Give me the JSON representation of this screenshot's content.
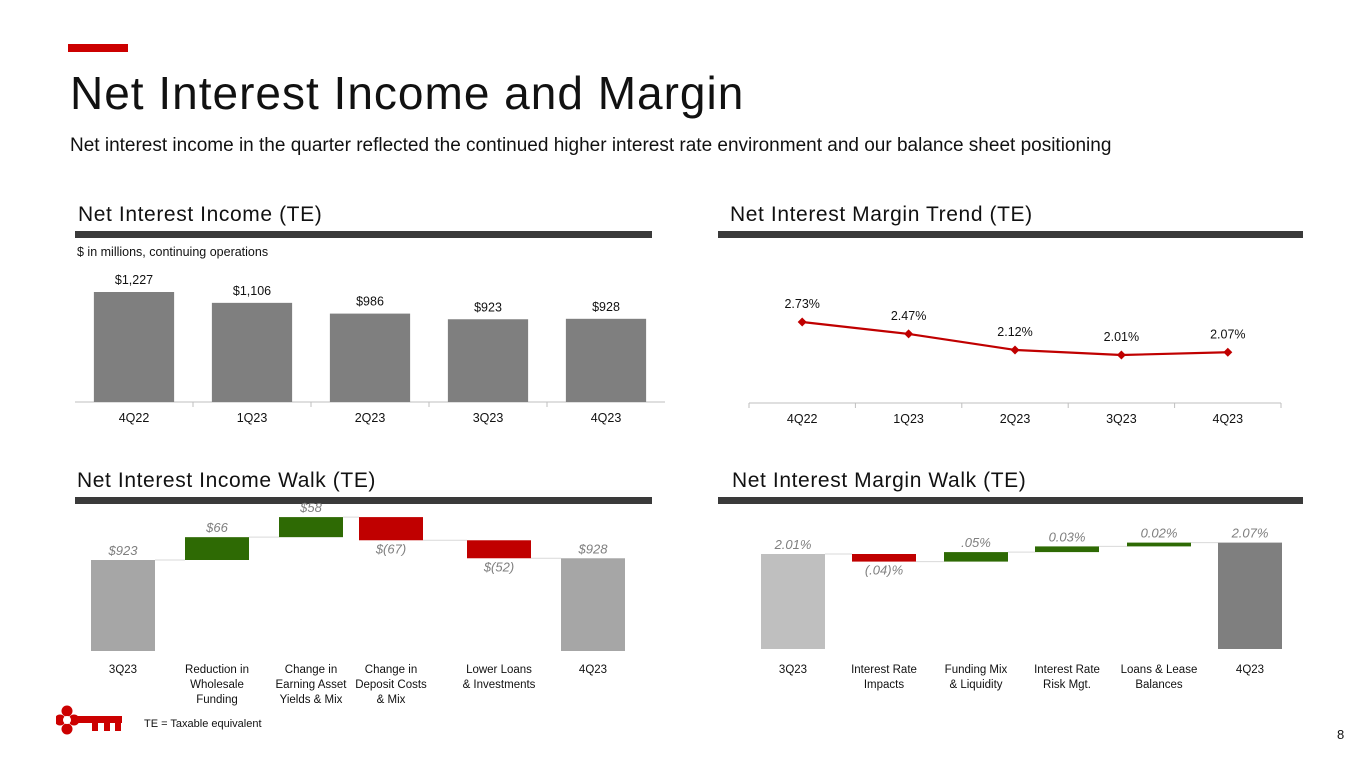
{
  "header": {
    "title": "Net Interest Income and Margin",
    "subtitle": "Net interest income in the quarter reflected the continued higher interest rate environment and our balance sheet positioning"
  },
  "sections": {
    "nii_title": "Net Interest Income (TE)",
    "nim_title": "Net Interest Margin Trend (TE)",
    "nii_walk_title": "Net Interest Income Walk (TE)",
    "nim_walk_title": "Net Interest Margin Walk (TE)"
  },
  "note": "$ in millions, continuing operations",
  "footnote": "TE = Taxable equivalent",
  "page_number": "8",
  "colors": {
    "bar_gray": "#7f7f7f",
    "line_red": "#c00000",
    "up_green": "#2e6a04",
    "down_red": "#c00000",
    "walk_light": "#a6a6a6",
    "walk_light2": "#bfbfbf",
    "logo_red": "#cc0000"
  },
  "chart_data": [
    {
      "id": "nii",
      "type": "bar",
      "title": "Net Interest Income (TE)",
      "categories": [
        "4Q22",
        "1Q23",
        "2Q23",
        "3Q23",
        "4Q23"
      ],
      "values": [
        1227,
        1106,
        986,
        923,
        928
      ],
      "labels": [
        "$1,227",
        "$1,106",
        "$986",
        "$923",
        "$928"
      ],
      "ylim": [
        0,
        1227
      ]
    },
    {
      "id": "nim",
      "type": "line",
      "title": "Net Interest Margin Trend (TE)",
      "categories": [
        "4Q22",
        "1Q23",
        "2Q23",
        "3Q23",
        "4Q23"
      ],
      "values": [
        2.73,
        2.47,
        2.12,
        2.01,
        2.07
      ],
      "labels": [
        "2.73%",
        "2.47%",
        "2.12%",
        "2.01%",
        "2.07%"
      ]
    },
    {
      "id": "nii_walk",
      "type": "waterfall",
      "title": "Net Interest Income Walk (TE)",
      "steps": [
        {
          "category": "3Q23",
          "value": 923,
          "kind": "total",
          "label": "$923"
        },
        {
          "category": "Reduction in Wholesale Funding",
          "value": 66,
          "kind": "delta",
          "label": "$66"
        },
        {
          "category": "Change in Earning Asset Yields & Mix",
          "value": 58,
          "kind": "delta",
          "label": "$58"
        },
        {
          "category": "Change in Deposit Costs & Mix",
          "value": -67,
          "kind": "delta",
          "label": "$(67)"
        },
        {
          "category": "Lower Loans & Investments",
          "value": -52,
          "kind": "delta",
          "label": "$(52)"
        },
        {
          "category": "4Q23",
          "value": 928,
          "kind": "total",
          "label": "$928"
        }
      ],
      "category_lines": [
        [
          "3Q23"
        ],
        [
          "Reduction in",
          "Wholesale",
          "Funding"
        ],
        [
          "Change in",
          "Earning Asset",
          "Yields & Mix"
        ],
        [
          "Change in",
          "Deposit Costs",
          "& Mix"
        ],
        [
          "Lower Loans",
          "& Investments"
        ],
        [
          "4Q23"
        ]
      ]
    },
    {
      "id": "nim_walk",
      "type": "waterfall",
      "title": "Net Interest Margin Walk (TE)",
      "steps": [
        {
          "category": "3Q23",
          "value": 2.01,
          "kind": "total",
          "label": "2.01%"
        },
        {
          "category": "Interest Rate Impacts",
          "value": -0.04,
          "kind": "delta",
          "label": "(.04)%"
        },
        {
          "category": "Funding Mix & Liquidity",
          "value": 0.05,
          "kind": "delta",
          "label": ".05%"
        },
        {
          "category": "Interest Rate Risk Mgt.",
          "value": 0.03,
          "kind": "delta",
          "label": "0.03%"
        },
        {
          "category": "Loans & Lease Balances",
          "value": 0.02,
          "kind": "delta",
          "label": "0.02%"
        },
        {
          "category": "4Q23",
          "value": 2.07,
          "kind": "total",
          "label": "2.07%"
        }
      ],
      "category_lines": [
        [
          "3Q23"
        ],
        [
          "Interest Rate",
          "Impacts"
        ],
        [
          "Funding Mix",
          "& Liquidity"
        ],
        [
          "Interest Rate",
          "Risk Mgt."
        ],
        [
          "Loans & Lease",
          "Balances"
        ],
        [
          "4Q23"
        ]
      ]
    }
  ]
}
